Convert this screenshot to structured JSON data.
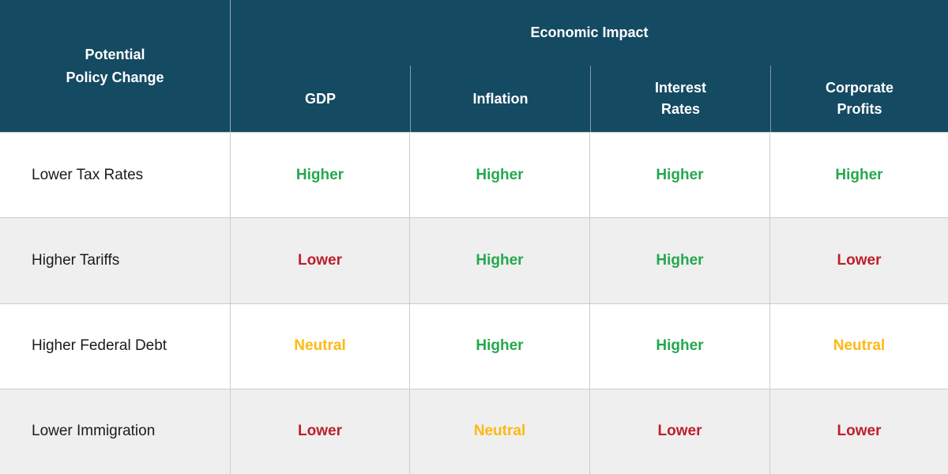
{
  "colors": {
    "header_background": "#154a63",
    "header_text": "#ffffff",
    "row_alt_background": "#efefef",
    "grid_line": "#cccccc",
    "positive": "#25a84d",
    "negative": "#bd202b",
    "neutral": "#fdb913",
    "policy_text": "#1b1b1b"
  },
  "table": {
    "policy_header": "Potential\nPolicy Change",
    "group_header": "Economic Impact",
    "columns": [
      {
        "label": "GDP"
      },
      {
        "label": "Inflation"
      },
      {
        "label": "Interest\nRates"
      },
      {
        "label": "Corporate\nProfits"
      }
    ],
    "rows": [
      {
        "policy": "Lower Tax Rates",
        "values": [
          {
            "label": "Higher",
            "status": "positive"
          },
          {
            "label": "Higher",
            "status": "positive"
          },
          {
            "label": "Higher",
            "status": "positive"
          },
          {
            "label": "Higher",
            "status": "positive"
          }
        ]
      },
      {
        "policy": "Higher Tariffs",
        "values": [
          {
            "label": "Lower",
            "status": "negative"
          },
          {
            "label": "Higher",
            "status": "positive"
          },
          {
            "label": "Higher",
            "status": "positive"
          },
          {
            "label": "Lower",
            "status": "negative"
          }
        ]
      },
      {
        "policy": "Higher Federal Debt",
        "values": [
          {
            "label": "Neutral",
            "status": "neutral"
          },
          {
            "label": "Higher",
            "status": "positive"
          },
          {
            "label": "Higher",
            "status": "positive"
          },
          {
            "label": "Neutral",
            "status": "neutral"
          }
        ]
      },
      {
        "policy": "Lower Immigration",
        "values": [
          {
            "label": "Lower",
            "status": "negative"
          },
          {
            "label": "Neutral",
            "status": "neutral"
          },
          {
            "label": "Lower",
            "status": "negative"
          },
          {
            "label": "Lower",
            "status": "negative"
          }
        ]
      }
    ]
  },
  "chart_data": {
    "type": "table",
    "title": "Economic Impact",
    "row_header": "Potential Policy Change",
    "columns": [
      "GDP",
      "Inflation",
      "Interest Rates",
      "Corporate Profits"
    ],
    "rows": [
      {
        "policy": "Lower Tax Rates",
        "values": [
          "Higher",
          "Higher",
          "Higher",
          "Higher"
        ]
      },
      {
        "policy": "Higher Tariffs",
        "values": [
          "Lower",
          "Higher",
          "Higher",
          "Lower"
        ]
      },
      {
        "policy": "Higher Federal Debt",
        "values": [
          "Neutral",
          "Higher",
          "Higher",
          "Neutral"
        ]
      },
      {
        "policy": "Lower Immigration",
        "values": [
          "Lower",
          "Neutral",
          "Lower",
          "Lower"
        ]
      }
    ],
    "legend": {
      "Higher": "green",
      "Lower": "red",
      "Neutral": "gold"
    }
  }
}
